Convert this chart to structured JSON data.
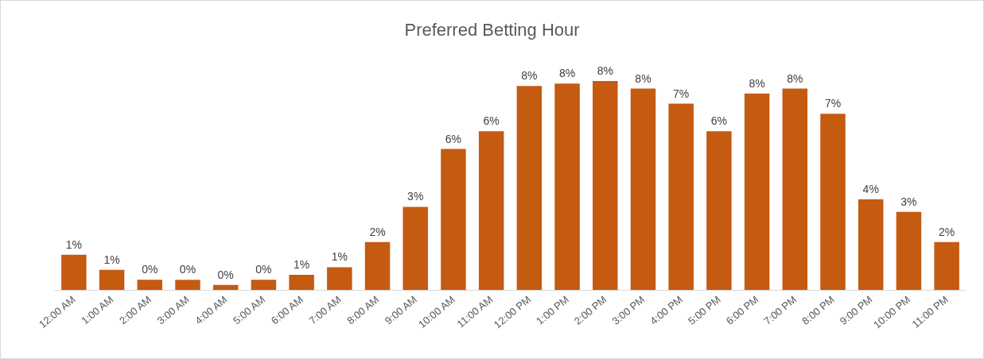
{
  "chart_data": {
    "type": "bar",
    "title": "Preferred Betting Hour",
    "categories": [
      "12:00 AM",
      "1:00 AM",
      "2:00 AM",
      "3:00 AM",
      "4:00 AM",
      "5:00 AM",
      "6:00 AM",
      "7:00 AM",
      "8:00 AM",
      "9:00 AM",
      "10:00 AM",
      "11:00 AM",
      "12:00 PM",
      "1:00 PM",
      "2:00 PM",
      "3:00 PM",
      "4:00 PM",
      "5:00 PM",
      "6:00 PM",
      "7:00 PM",
      "8:00 PM",
      "9:00 PM",
      "10:00 PM",
      "11:00 PM"
    ],
    "values": [
      1.4,
      0.8,
      0.4,
      0.4,
      0.2,
      0.4,
      0.6,
      0.9,
      1.9,
      3.3,
      5.6,
      6.3,
      8.1,
      8.2,
      8.3,
      8.0,
      7.4,
      6.3,
      7.8,
      8.0,
      7.0,
      3.6,
      3.1,
      1.9
    ],
    "value_labels": [
      "1%",
      "1%",
      "0%",
      "0%",
      "0%",
      "0%",
      "1%",
      "1%",
      "2%",
      "3%",
      "6%",
      "6%",
      "8%",
      "8%",
      "8%",
      "8%",
      "7%",
      "6%",
      "8%",
      "8%",
      "7%",
      "4%",
      "3%",
      "2%"
    ],
    "color": "#c55a11",
    "grid": false
  }
}
